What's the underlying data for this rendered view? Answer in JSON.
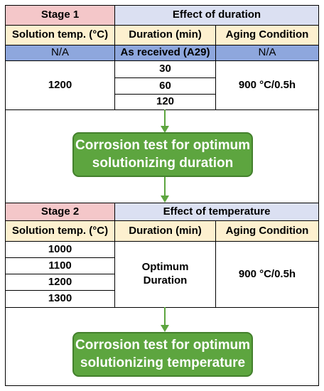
{
  "stage1": {
    "stage_label": "Stage 1",
    "effect_label": "Effect of duration",
    "headers": {
      "solution_temp": "Solution temp. (°C)",
      "duration": "Duration (min)",
      "aging": "Aging Condition"
    },
    "reference_row": {
      "solution_temp": "N/A",
      "duration": "As received (A29)",
      "aging": "N/A"
    },
    "solution_temp_value": "1200",
    "durations": [
      "30",
      "60",
      "120"
    ],
    "aging_value": "900 °C/0.5h"
  },
  "step1": {
    "line1": "Corrosion test for optimum",
    "line2": "solutionizing duration"
  },
  "stage2": {
    "stage_label": "Stage 2",
    "effect_label": "Effect of temperature",
    "headers": {
      "solution_temp": "Solution temp. (°C)",
      "duration": "Duration (min)",
      "aging": "Aging Condition"
    },
    "temperatures": [
      "1000",
      "1100",
      "1200",
      "1300"
    ],
    "duration_line1": "Optimum",
    "duration_line2": "Duration",
    "aging_value": "900 °C/0.5h"
  },
  "step2": {
    "line1": "Corrosion test for optimum",
    "line2": "solutionizing temperature"
  },
  "colors": {
    "stage_header": "#f4c7c9",
    "effect_header": "#dbe0f2",
    "column_header": "#fdf0cf",
    "reference_row": "#8ea7dd",
    "process_box": "#5da53f",
    "arrow": "#5da53f"
  }
}
